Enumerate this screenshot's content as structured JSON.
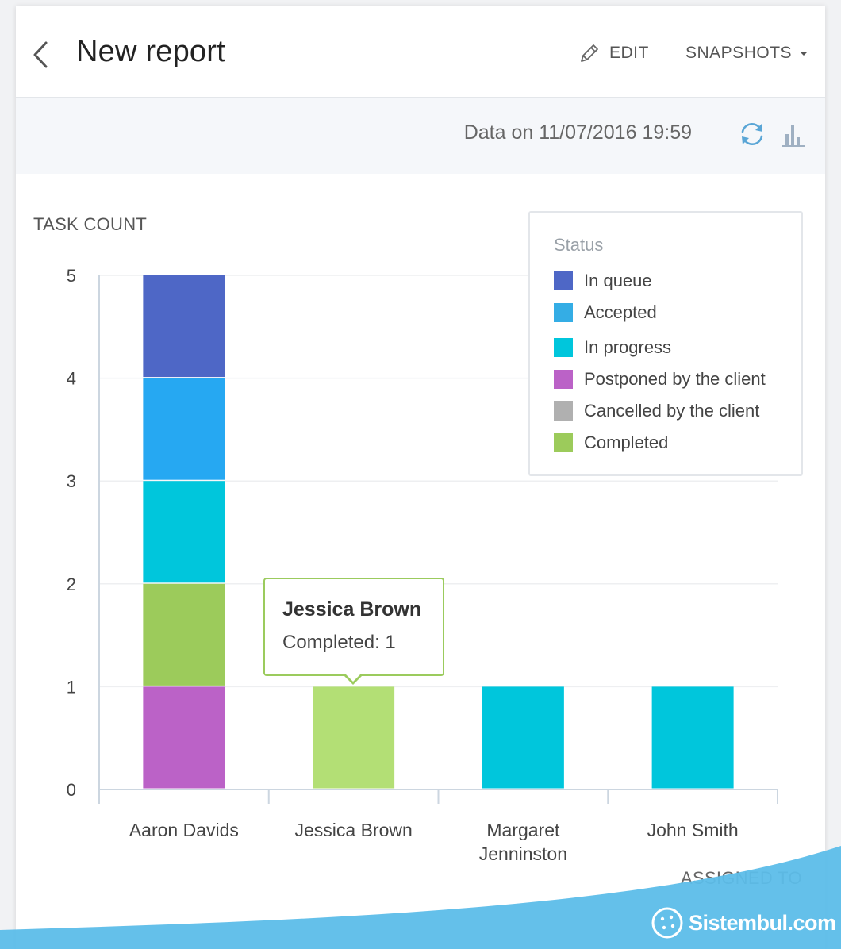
{
  "header": {
    "title": "New report",
    "edit_label": "EDIT",
    "snapshots_label": "SNAPSHOTS"
  },
  "databar": {
    "data_text": "Data on 11/07/2016 19:59"
  },
  "chart_data": {
    "type": "bar",
    "stacked": true,
    "ylabel": "TASK COUNT",
    "xlabel": "ASSIGNED TO",
    "ylim": [
      0,
      5
    ],
    "yticks": [
      0,
      1,
      2,
      3,
      4,
      5
    ],
    "categories": [
      "Aaron Davids",
      "Jessica Brown",
      "Margaret Jenninston",
      "John Smith"
    ],
    "category_lines": [
      [
        "Aaron Davids"
      ],
      [
        "Jessica Brown"
      ],
      [
        "Margaret",
        "Jenninston"
      ],
      [
        "John Smith"
      ]
    ],
    "stack_order": [
      "Postponed by the client",
      "Completed",
      "In progress",
      "Accepted",
      "In queue",
      "Cancelled by the client"
    ],
    "series": [
      {
        "name": "In queue",
        "color": "#4e67c6",
        "values": [
          1,
          0,
          0,
          0
        ]
      },
      {
        "name": "Accepted",
        "color": "#26a8f2",
        "values": [
          1,
          0,
          0,
          0
        ]
      },
      {
        "name": "In progress",
        "color": "#00c6dc",
        "values": [
          1,
          0,
          1,
          1
        ]
      },
      {
        "name": "Postponed by the client",
        "color": "#bb62c7",
        "values": [
          1,
          0,
          0,
          0
        ]
      },
      {
        "name": "Cancelled by the client",
        "color": "#b0b0b0",
        "values": [
          0,
          0,
          0,
          0
        ]
      },
      {
        "name": "Completed",
        "color": "#9ccb5b",
        "values": [
          1,
          1,
          0,
          0
        ]
      }
    ],
    "highlight": {
      "category": "Jessica Brown",
      "series": "Completed",
      "color": "#b3df75"
    },
    "legend": {
      "title": "Status",
      "position": "top-right"
    },
    "grid": true
  },
  "tooltip": {
    "name": "Jessica Brown",
    "value_text": "Completed: 1"
  },
  "legend": {
    "title": "Status",
    "items": [
      {
        "label": "In queue",
        "color": "#4e67c6"
      },
      {
        "label": "Accepted",
        "color": "#34ade5"
      },
      {
        "label": "In progress",
        "color": "#00c6dc"
      },
      {
        "label": "Postponed by the client",
        "color": "#bb62c7"
      },
      {
        "label": "Cancelled by the client",
        "color": "#b0b0b0"
      },
      {
        "label": "Completed",
        "color": "#9ccb5b"
      }
    ]
  },
  "watermark": {
    "text": "Sistembul.com"
  }
}
